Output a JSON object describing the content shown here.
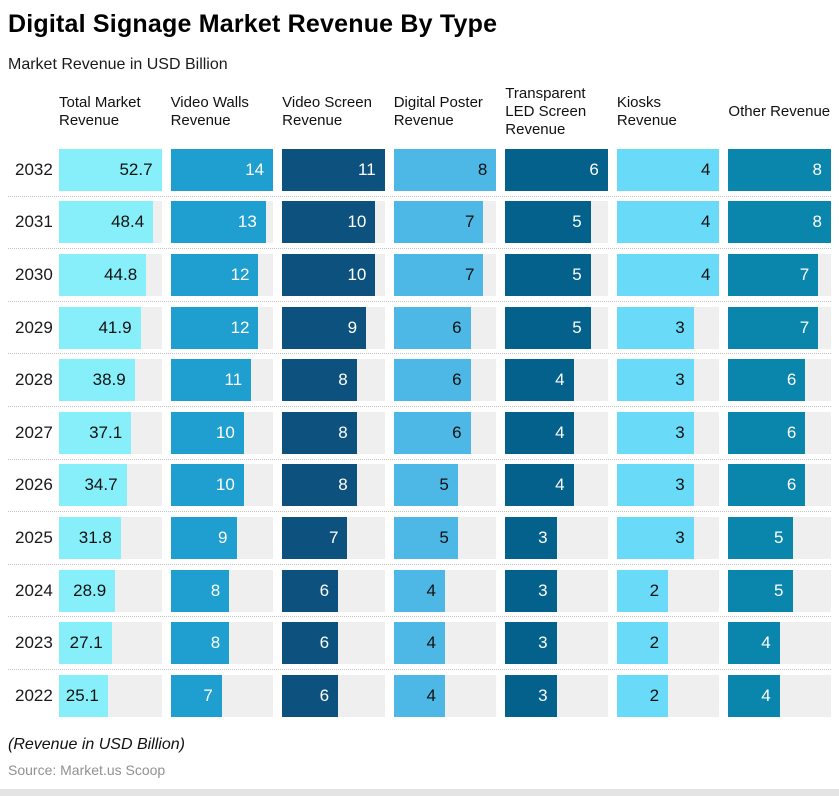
{
  "header": {
    "title": "Digital Signage Market Revenue By Type",
    "subtitle": "Market Revenue in USD Billion"
  },
  "table": {
    "track_color": "#efefef",
    "columns": [
      {
        "label": "Total Market Revenue",
        "color": "#87EFF9",
        "text_color": "#111111",
        "max": 52.7
      },
      {
        "label": "Video Walls Revenue",
        "color": "#1E9FCF",
        "text_color": "#FFFFFF",
        "max": 14
      },
      {
        "label": "Video Screen Revenue",
        "color": "#0D527E",
        "text_color": "#FFFFFF",
        "max": 11
      },
      {
        "label": "Digital Poster Revenue",
        "color": "#4DB7E5",
        "text_color": "#111111",
        "max": 8
      },
      {
        "label": "Transparent LED Screen Revenue",
        "color": "#03618C",
        "text_color": "#FFFFFF",
        "max": 6
      },
      {
        "label": "Kiosks Revenue",
        "color": "#69DAF8",
        "text_color": "#111111",
        "max": 4
      },
      {
        "label": "Other Revenue",
        "color": "#0A85AB",
        "text_color": "#FFFFFF",
        "max": 8
      }
    ]
  },
  "footer": {
    "note": "(Revenue in USD Billion)",
    "source": "Source: Market.us Scoop"
  },
  "chart_data": {
    "type": "bar",
    "orientation": "horizontal",
    "title": "Digital Signage Market Revenue By Type",
    "subtitle": "Market Revenue in USD Billion",
    "unit": "USD Billion",
    "legend_position": "top",
    "grid": false,
    "categories": [
      "2032",
      "2031",
      "2030",
      "2029",
      "2028",
      "2027",
      "2026",
      "2025",
      "2024",
      "2023",
      "2022"
    ],
    "series": [
      {
        "name": "Total Market Revenue",
        "values": [
          52.7,
          48.4,
          44.8,
          41.9,
          38.9,
          37.1,
          34.7,
          31.8,
          28.9,
          27.1,
          25.1
        ]
      },
      {
        "name": "Video Walls Revenue",
        "values": [
          14,
          13,
          12,
          12,
          11,
          10,
          10,
          9,
          8,
          8,
          7
        ]
      },
      {
        "name": "Video Screen Revenue",
        "values": [
          11,
          10,
          10,
          9,
          8,
          8,
          8,
          7,
          6,
          6,
          6
        ]
      },
      {
        "name": "Digital Poster Revenue",
        "values": [
          8,
          7,
          7,
          6,
          6,
          6,
          5,
          5,
          4,
          4,
          4
        ]
      },
      {
        "name": "Transparent LED Screen Revenue",
        "values": [
          6,
          5,
          5,
          5,
          4,
          4,
          4,
          3,
          3,
          3,
          3
        ]
      },
      {
        "name": "Kiosks Revenue",
        "values": [
          4,
          4,
          4,
          3,
          3,
          3,
          3,
          3,
          2,
          2,
          2
        ]
      },
      {
        "name": "Other Revenue",
        "values": [
          8,
          8,
          7,
          7,
          6,
          6,
          6,
          5,
          5,
          4,
          4
        ]
      }
    ]
  }
}
